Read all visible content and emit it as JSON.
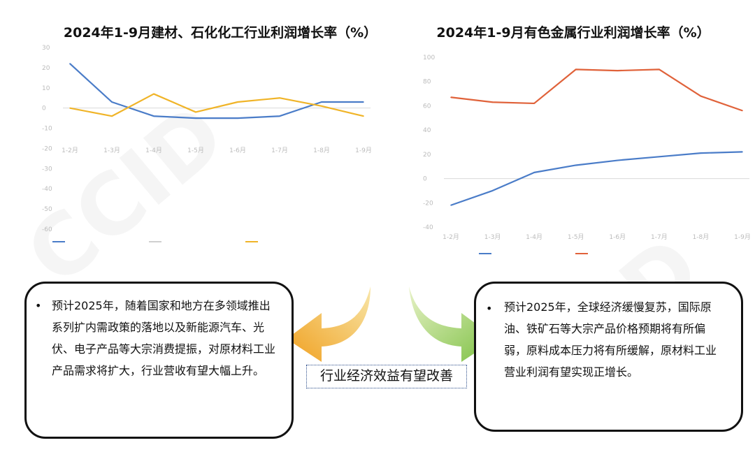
{
  "left_chart": {
    "title": "2024年1-9月建材、石化化工行业利润增长率（%）"
  },
  "right_chart": {
    "title": "2024年1-9月有色金属行业利润增长率（%）"
  },
  "colors": {
    "blue": "#4a7cc8",
    "gold": "#f0b428",
    "orange": "#e0623a",
    "grid": "#ececec",
    "axis": "#d9d9d9"
  },
  "chart_data": [
    {
      "type": "line",
      "title": "2024年1-9月建材、石化化工行业利润增长率（%）",
      "x": [
        "1-2月",
        "1-3月",
        "1-4月",
        "1-5月",
        "1-6月",
        "1-7月",
        "1-8月",
        "1-9月"
      ],
      "ylim": [
        -60,
        30
      ],
      "yticks": [
        30,
        20,
        10,
        0,
        -10,
        -20,
        -30,
        -40,
        -50,
        -60
      ],
      "series": [
        {
          "name": "",
          "color": "#4a7cc8",
          "values": [
            22,
            3,
            -4,
            -5,
            -5,
            -4,
            3,
            3
          ]
        },
        {
          "name": "",
          "color": "#f0b428",
          "values": [
            0,
            -4,
            7,
            -2,
            3,
            5,
            1,
            -4
          ]
        }
      ],
      "grid": false,
      "legend": "bottom"
    },
    {
      "type": "line",
      "title": "2024年1-9月有色金属行业利润增长率（%）",
      "x": [
        "1-2月",
        "1-3月",
        "1-4月",
        "1-5月",
        "1-6月",
        "1-7月",
        "1-8月",
        "1-9月"
      ],
      "ylim": [
        -40,
        100
      ],
      "yticks": [
        100,
        80,
        60,
        40,
        20,
        0,
        -20,
        -40
      ],
      "series": [
        {
          "name": "",
          "color": "#4a7cc8",
          "values": [
            -22,
            -10,
            5,
            11,
            15,
            18,
            21,
            22
          ]
        },
        {
          "name": "",
          "color": "#e0623a",
          "values": [
            67,
            63,
            62,
            90,
            89,
            90,
            68,
            56
          ]
        }
      ],
      "grid": false,
      "legend": "bottom"
    }
  ],
  "callouts": {
    "left": "预计2025年，随着国家和地方在多领域推出系列扩内需政策的落地以及新能源汽车、光伏、电子产品等大宗消费提振，对原材料工业产品需求将扩大，行业营收有望大幅上升。",
    "right": "预计2025年，全球经济缓慢复苏，国际原油、铁矿石等大宗产品价格预期将有所偏弱，原料成本压力将有所缓解，原材料工业营业利润有望实现正增长。",
    "bullet": "•"
  },
  "center_label": "行业经济效益有望改善",
  "watermark": "CCID"
}
